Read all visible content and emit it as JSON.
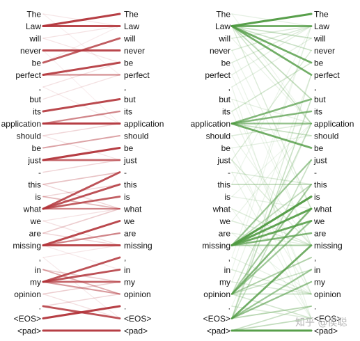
{
  "tokens": [
    "The",
    "Law",
    "will",
    "never",
    "be",
    "perfect",
    ",",
    "but",
    "its",
    "application",
    "should",
    "be",
    "just",
    "-",
    "this",
    "is",
    "what",
    "we",
    "are",
    "missing",
    ",",
    "in",
    "my",
    "opinion",
    ".",
    "<EOS>",
    "<pad>"
  ],
  "panels": [
    {
      "id": "left",
      "color": "#b2343a",
      "links": [
        [
          1,
          0,
          0.95
        ],
        [
          1,
          1,
          0.9
        ],
        [
          3,
          3,
          0.9
        ],
        [
          4,
          2,
          0.8
        ],
        [
          5,
          4,
          0.9
        ],
        [
          5,
          5,
          0.55
        ],
        [
          8,
          7,
          0.9
        ],
        [
          9,
          9,
          0.95
        ],
        [
          9,
          8,
          0.6
        ],
        [
          11,
          10,
          0.45
        ],
        [
          12,
          11,
          0.95
        ],
        [
          12,
          12,
          0.75
        ],
        [
          14,
          13,
          0.3
        ],
        [
          16,
          13,
          0.85
        ],
        [
          16,
          14,
          0.85
        ],
        [
          16,
          15,
          0.8
        ],
        [
          16,
          16,
          0.6
        ],
        [
          15,
          16,
          0.35
        ],
        [
          19,
          17,
          0.9
        ],
        [
          19,
          19,
          0.9
        ],
        [
          19,
          18,
          0.6
        ],
        [
          22,
          20,
          0.85
        ],
        [
          22,
          21,
          0.85
        ],
        [
          22,
          22,
          0.75
        ],
        [
          22,
          23,
          0.5
        ],
        [
          21,
          23,
          0.4
        ],
        [
          25,
          24,
          0.95
        ],
        [
          24,
          25,
          0.85
        ],
        [
          26,
          26,
          0.95
        ],
        [
          0,
          1,
          0.12
        ],
        [
          2,
          1,
          0.15
        ],
        [
          4,
          1,
          0.1
        ],
        [
          6,
          4,
          0.15
        ],
        [
          10,
          9,
          0.2
        ],
        [
          13,
          12,
          0.2
        ],
        [
          17,
          16,
          0.15
        ],
        [
          18,
          16,
          0.25
        ],
        [
          20,
          19,
          0.12
        ],
        [
          23,
          22,
          0.25
        ],
        [
          7,
          5,
          0.15
        ],
        [
          2,
          4,
          0.12
        ],
        [
          3,
          9,
          0.08
        ],
        [
          6,
          9,
          0.1
        ],
        [
          17,
          19,
          0.15
        ],
        [
          20,
          25,
          0.1
        ],
        [
          23,
          25,
          0.15
        ],
        [
          21,
          22,
          0.25
        ],
        [
          14,
          16,
          0.2
        ],
        [
          10,
          12,
          0.12
        ],
        [
          24,
          23,
          0.2
        ],
        [
          0,
          5,
          0.08
        ],
        [
          19,
          21,
          0.1
        ],
        [
          18,
          19,
          0.2
        ],
        [
          15,
          14,
          0.2
        ]
      ]
    },
    {
      "id": "right",
      "color": "#4f9a41",
      "links": [
        [
          1,
          0,
          0.95
        ],
        [
          1,
          1,
          0.85
        ],
        [
          1,
          4,
          0.8
        ],
        [
          1,
          5,
          0.8
        ],
        [
          1,
          3,
          0.3
        ],
        [
          1,
          7,
          0.35
        ],
        [
          1,
          2,
          0.3
        ],
        [
          1,
          9,
          0.25
        ],
        [
          1,
          16,
          0.2
        ],
        [
          9,
          7,
          0.7
        ],
        [
          9,
          8,
          0.7
        ],
        [
          9,
          9,
          0.6
        ],
        [
          9,
          11,
          0.8
        ],
        [
          9,
          10,
          0.3
        ],
        [
          8,
          4,
          0.25
        ],
        [
          12,
          3,
          0.2
        ],
        [
          14,
          14,
          0.35
        ],
        [
          12,
          19,
          0.2
        ],
        [
          19,
          12,
          0.55
        ],
        [
          19,
          15,
          0.95
        ],
        [
          19,
          16,
          0.9
        ],
        [
          19,
          17,
          0.85
        ],
        [
          19,
          18,
          0.7
        ],
        [
          19,
          19,
          0.5
        ],
        [
          19,
          14,
          0.35
        ],
        [
          23,
          16,
          0.7
        ],
        [
          23,
          17,
          0.55
        ],
        [
          23,
          20,
          0.45
        ],
        [
          23,
          21,
          0.3
        ],
        [
          23,
          14,
          0.5
        ],
        [
          23,
          9,
          0.3
        ],
        [
          23,
          23,
          0.3
        ],
        [
          23,
          25,
          0.25
        ],
        [
          25,
          19,
          0.8
        ],
        [
          25,
          21,
          0.55
        ],
        [
          25,
          22,
          0.6
        ],
        [
          25,
          24,
          0.4
        ],
        [
          25,
          7,
          0.3
        ],
        [
          25,
          12,
          0.3
        ],
        [
          25,
          5,
          0.2
        ],
        [
          26,
          26,
          0.95
        ],
        [
          26,
          25,
          0.35
        ],
        [
          26,
          24,
          0.3
        ],
        [
          0,
          1,
          0.15
        ],
        [
          2,
          1,
          0.2
        ],
        [
          3,
          1,
          0.2
        ],
        [
          4,
          1,
          0.2
        ],
        [
          5,
          1,
          0.15
        ],
        [
          6,
          2,
          0.15
        ],
        [
          7,
          9,
          0.15
        ],
        [
          10,
          9,
          0.2
        ],
        [
          11,
          10,
          0.15
        ],
        [
          13,
          14,
          0.2
        ],
        [
          15,
          16,
          0.15
        ],
        [
          16,
          19,
          0.2
        ],
        [
          17,
          19,
          0.2
        ],
        [
          18,
          19,
          0.15
        ],
        [
          20,
          23,
          0.15
        ],
        [
          21,
          23,
          0.2
        ],
        [
          22,
          23,
          0.2
        ],
        [
          24,
          25,
          0.2
        ],
        [
          2,
          9,
          0.12
        ],
        [
          4,
          19,
          0.12
        ],
        [
          6,
          25,
          0.12
        ],
        [
          8,
          23,
          0.12
        ],
        [
          10,
          19,
          0.12
        ],
        [
          13,
          25,
          0.12
        ],
        [
          17,
          9,
          0.12
        ],
        [
          20,
          1,
          0.1
        ],
        [
          22,
          5,
          0.12
        ],
        [
          0,
          9,
          0.1
        ],
        [
          3,
          16,
          0.12
        ],
        [
          5,
          19,
          0.1
        ],
        [
          7,
          23,
          0.1
        ],
        [
          11,
          25,
          0.1
        ],
        [
          12,
          23,
          0.12
        ],
        [
          14,
          1,
          0.1
        ],
        [
          15,
          9,
          0.1
        ],
        [
          16,
          25,
          0.1
        ],
        [
          18,
          23,
          0.1
        ],
        [
          21,
          1,
          0.1
        ],
        [
          24,
          9,
          0.1
        ]
      ]
    }
  ],
  "watermark": "知乎 @侯聪"
}
